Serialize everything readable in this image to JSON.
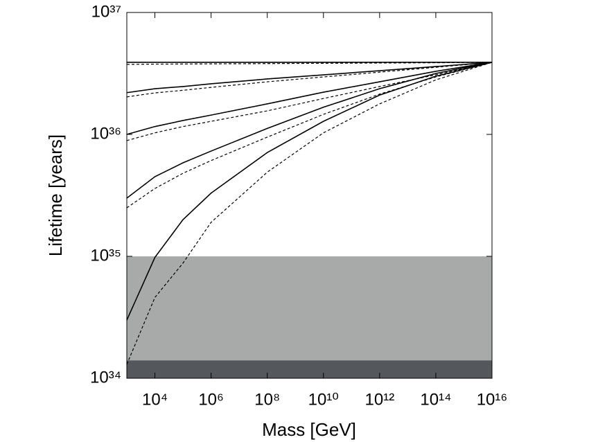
{
  "chart_data": {
    "type": "line",
    "xlabel": "Mass [GeV]",
    "ylabel": "Lifetime [years]",
    "xscale": "log",
    "yscale": "log",
    "x": [
      1000,
      10000,
      100000,
      1000000,
      100000000,
      10000000000,
      1000000000000,
      100000000000000,
      10000000000000000
    ],
    "xlim": [
      1000,
      10000000000000000
    ],
    "xticks": [
      {
        "value": 10000,
        "label": "10⁴"
      },
      {
        "value": 1000000,
        "label": "10⁶"
      },
      {
        "value": 100000000,
        "label": "10⁸"
      },
      {
        "value": 10000000000,
        "label": "10¹⁰"
      },
      {
        "value": 1000000000000,
        "label": "10¹²"
      },
      {
        "value": 100000000000000,
        "label": "10¹⁴"
      },
      {
        "value": 10000000000000000,
        "label": "10¹⁶"
      }
    ],
    "ylim": [
      1e+34,
      1e+37
    ],
    "yticks": [
      {
        "value": 1e+34,
        "label": "10³⁴"
      },
      {
        "value": 1e+35,
        "label": "10³⁵"
      },
      {
        "value": 1e+36,
        "label": "10³⁶"
      },
      {
        "value": 1e+37,
        "label": "10³⁷"
      }
    ],
    "bands": [
      {
        "from": 1e+34,
        "to": 1e+35,
        "color": "#a7aaa8"
      },
      {
        "from": 1e+34,
        "to": 1.4e+34,
        "color": "#54575b"
      }
    ],
    "series": [
      {
        "color": "#000000",
        "dashed": false,
        "values": [
          3.9e+36,
          3.9e+36,
          3.9e+36,
          3.9e+36,
          3.9e+36,
          3.9e+36,
          3.9e+36,
          3.9e+36,
          3.9e+36
        ]
      },
      {
        "color": "#000000",
        "dashed": true,
        "values": [
          3.75e+36,
          3.77e+36,
          3.78e+36,
          3.79e+36,
          3.81e+36,
          3.83e+36,
          3.85e+36,
          3.87e+36,
          3.9e+36
        ]
      },
      {
        "color": "#000000",
        "dashed": false,
        "values": [
          2.2e+36,
          2.37e+36,
          2.47e+36,
          2.6e+36,
          2.85e+36,
          3.08e+36,
          3.33e+36,
          3.6e+36,
          3.9e+36
        ]
      },
      {
        "color": "#000000",
        "dashed": true,
        "values": [
          2.03e+36,
          2.19e+36,
          2.3e+36,
          2.43e+36,
          2.7e+36,
          2.96e+36,
          3.24e+36,
          3.55e+36,
          3.9e+36
        ]
      },
      {
        "color": "#000000",
        "dashed": false,
        "values": [
          1e+36,
          1.16e+36,
          1.3e+36,
          1.44e+36,
          1.78e+36,
          2.22e+36,
          2.7e+36,
          3.29e+36,
          3.9e+36
        ]
      },
      {
        "color": "#000000",
        "dashed": true,
        "values": [
          8.9e+35,
          1.03e+36,
          1.16e+36,
          1.28e+36,
          1.56e+36,
          1.97e+36,
          2.47e+36,
          3.08e+36,
          3.9e+36
        ]
      },
      {
        "color": "#000000",
        "dashed": false,
        "values": [
          3e+35,
          4.5e+35,
          5.85e+35,
          7.3e+35,
          1.12e+36,
          1.67e+36,
          2.37e+36,
          3.16e+36,
          3.9e+36
        ]
      },
      {
        "color": "#000000",
        "dashed": true,
        "values": [
          2.5e+35,
          3.6e+35,
          4.8e+35,
          6.1e+35,
          9.5e+35,
          1.46e+36,
          2.14e+36,
          2.96e+36,
          3.9e+36
        ]
      },
      {
        "color": "#000000",
        "dashed": false,
        "values": [
          3e+34,
          9.8e+34,
          2e+35,
          3.3e+35,
          7.1e+35,
          1.28e+36,
          2.1e+36,
          3e+36,
          3.9e+36
        ]
      },
      {
        "color": "#000000",
        "dashed": true,
        "values": [
          1.3e+34,
          4.6e+34,
          8.8e+34,
          1.9e+35,
          4.9e+35,
          1.03e+36,
          1.78e+36,
          2.8e+36,
          3.9e+36
        ]
      }
    ]
  }
}
